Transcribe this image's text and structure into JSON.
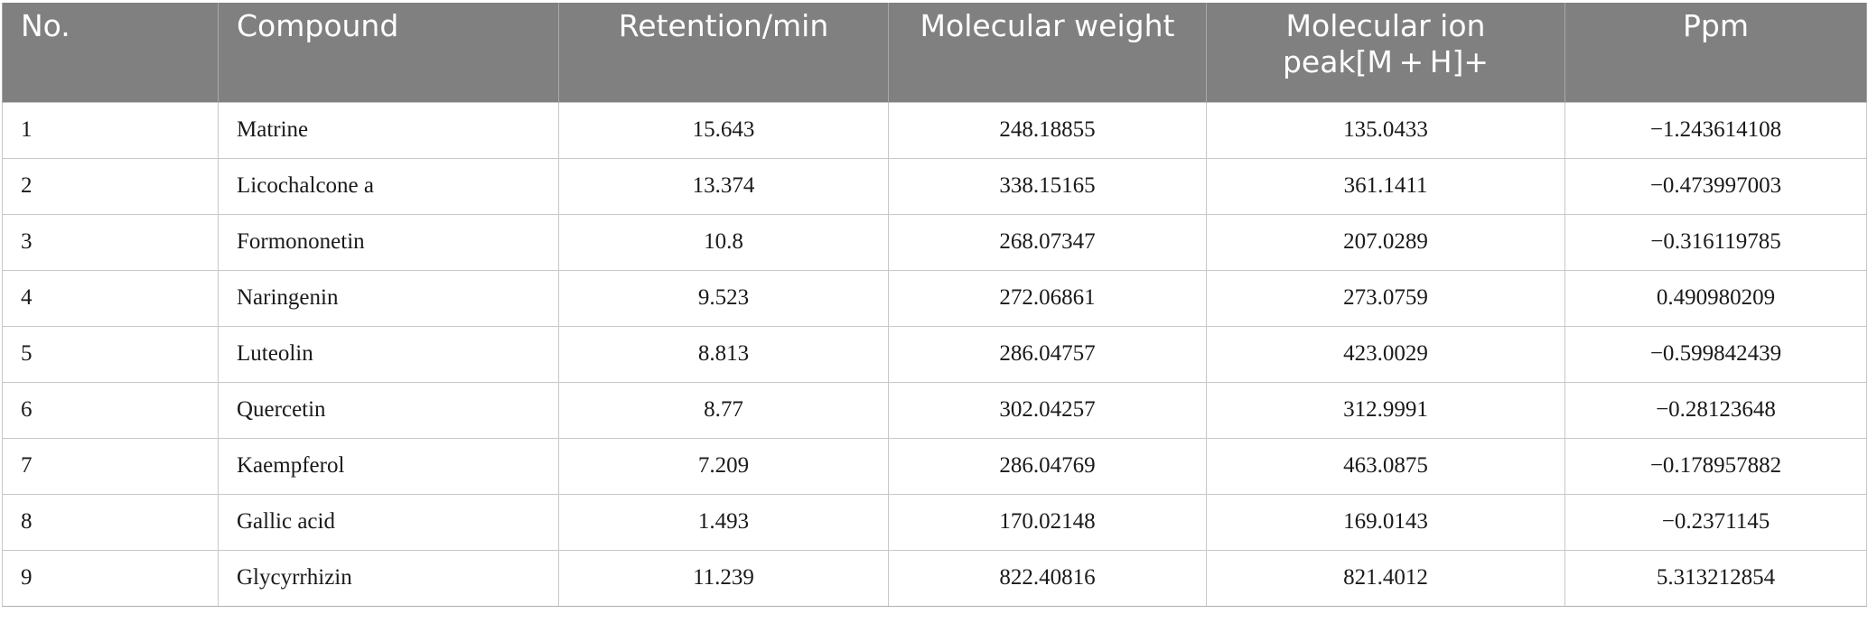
{
  "table": {
    "headers": [
      "No.",
      "Compound",
      "Retention/min",
      "Molecular weight",
      "Molecular ion peak[M + H]+",
      "Ppm"
    ],
    "rows": [
      [
        "1",
        "Matrine",
        "15.643",
        "248.18855",
        "135.0433",
        "−1.243614108"
      ],
      [
        "2",
        "Licochalcone a",
        "13.374",
        "338.15165",
        "361.1411",
        "−0.473997003"
      ],
      [
        "3",
        "Formononetin",
        "10.8",
        "268.07347",
        "207.0289",
        "−0.316119785"
      ],
      [
        "4",
        "Naringenin",
        "9.523",
        "272.06861",
        "273.0759",
        "0.490980209"
      ],
      [
        "5",
        "Luteolin",
        "8.813",
        "286.04757",
        "423.0029",
        "−0.599842439"
      ],
      [
        "6",
        "Quercetin",
        "8.77",
        "302.04257",
        "312.9991",
        "−0.28123648"
      ],
      [
        "7",
        "Kaempferol",
        "7.209",
        "286.04769",
        "463.0875",
        "−0.178957882"
      ],
      [
        "8",
        "Gallic acid",
        "1.493",
        "170.02148",
        "169.0143",
        "−0.2371145"
      ],
      [
        "9",
        "Glycyrrhizin",
        "11.239",
        "822.40816",
        "821.4012",
        "5.313212854"
      ]
    ]
  },
  "colors": {
    "header_background": "#808080",
    "header_text": "#ffffff",
    "grid_lines": "#c8c8c8"
  }
}
